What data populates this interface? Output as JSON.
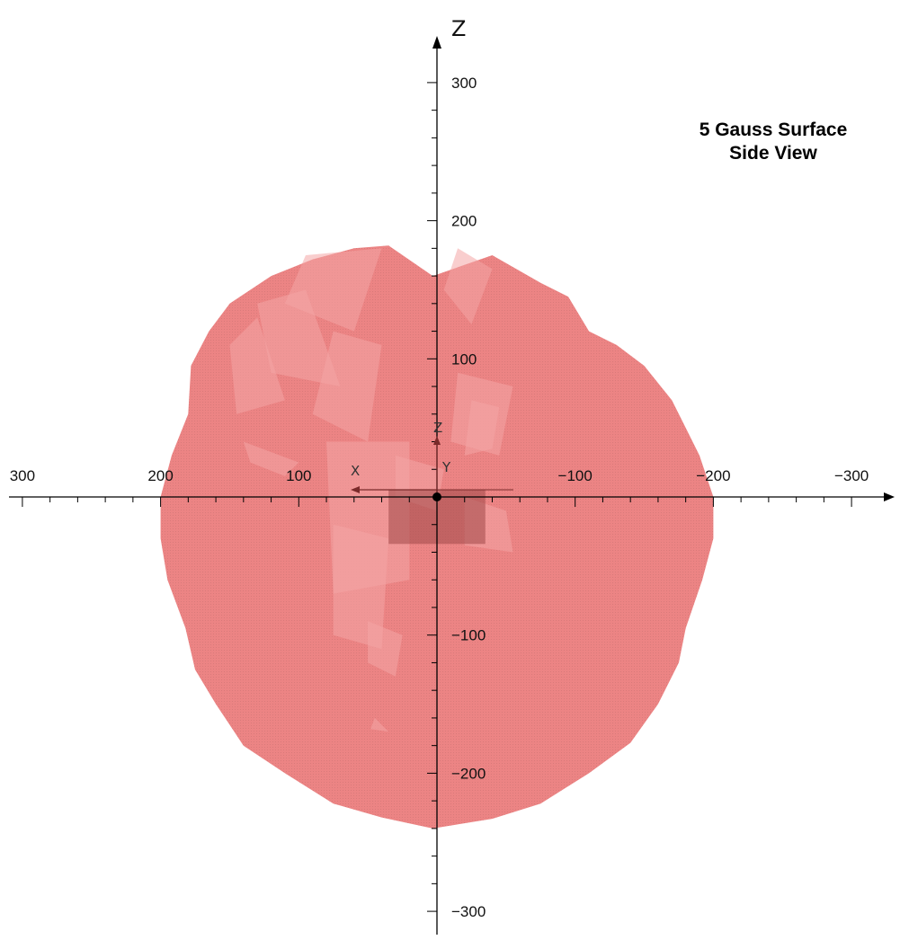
{
  "title": {
    "line1": "5 Gauss Surface",
    "line2": "Side View"
  },
  "axes": {
    "x_axis_name": "",
    "z_axis_name": "Z",
    "x_range": [
      300,
      -300
    ],
    "z_range": [
      -300,
      300
    ],
    "x_ticks": [
      {
        "value": 300,
        "label": "300"
      },
      {
        "value": 200,
        "label": "200"
      },
      {
        "value": 100,
        "label": "100"
      },
      {
        "value": -100,
        "label": "−100"
      },
      {
        "value": -200,
        "label": "−200"
      },
      {
        "value": -300,
        "label": "−300"
      }
    ],
    "z_ticks": [
      {
        "value": 300,
        "label": "300"
      },
      {
        "value": 200,
        "label": "200"
      },
      {
        "value": 100,
        "label": "100"
      },
      {
        "value": -100,
        "label": "−100"
      },
      {
        "value": -200,
        "label": "−200"
      },
      {
        "value": -300,
        "label": "−300"
      }
    ]
  },
  "origin_triad": {
    "x_label": "X",
    "y_label": "Y",
    "z_label": "Z"
  },
  "surface": {
    "name": "5 Gauss surface",
    "color": "#ea7a7a",
    "highlight_color": "#f4a5a5",
    "magnet_color": "#a04848",
    "outline": [
      [
        3,
        160
      ],
      [
        -40,
        175
      ],
      [
        -75,
        155
      ],
      [
        -95,
        145
      ],
      [
        -110,
        120
      ],
      [
        -130,
        110
      ],
      [
        -150,
        95
      ],
      [
        -170,
        70
      ],
      [
        -180,
        50
      ],
      [
        -190,
        30
      ],
      [
        -200,
        0
      ],
      [
        -200,
        -30
      ],
      [
        -192,
        -60
      ],
      [
        -180,
        -95
      ],
      [
        -175,
        -120
      ],
      [
        -160,
        -150
      ],
      [
        -140,
        -178
      ],
      [
        -110,
        -200
      ],
      [
        -75,
        -222
      ],
      [
        -40,
        -233
      ],
      [
        3,
        -240
      ],
      [
        40,
        -232
      ],
      [
        75,
        -222
      ],
      [
        110,
        -200
      ],
      [
        140,
        -180
      ],
      [
        160,
        -150
      ],
      [
        175,
        -125
      ],
      [
        182,
        -95
      ],
      [
        195,
        -60
      ],
      [
        200,
        -30
      ],
      [
        200,
        0
      ],
      [
        192,
        30
      ],
      [
        180,
        60
      ],
      [
        178,
        95
      ],
      [
        165,
        120
      ],
      [
        150,
        140
      ],
      [
        120,
        160
      ],
      [
        90,
        172
      ],
      [
        60,
        180
      ],
      [
        35,
        182
      ]
    ],
    "magnet_box": {
      "x": [
        35,
        -35
      ],
      "z": [
        5,
        -34
      ]
    }
  }
}
